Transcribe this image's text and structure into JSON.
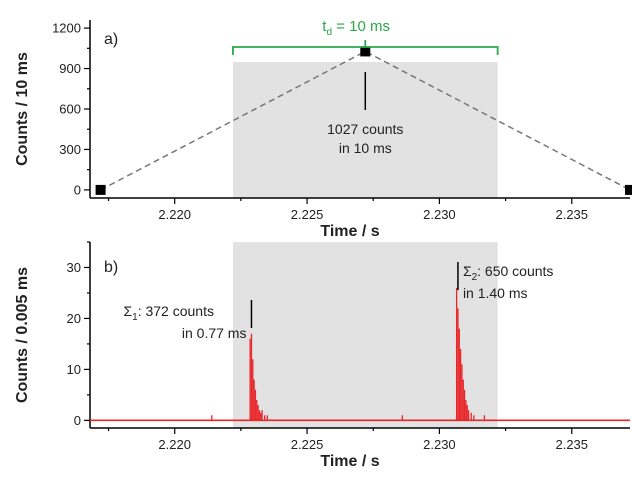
{
  "chart_data": [
    {
      "panel": "a)",
      "type": "line",
      "xlabel": "Time / s",
      "ylabel": "Counts / 10 ms",
      "xlim": [
        2.2168,
        2.2372
      ],
      "ylim": [
        -60,
        1260
      ],
      "xticks": [
        2.22,
        2.225,
        2.23,
        2.235
      ],
      "xtick_labels": [
        "2.220",
        "2.225",
        "2.230",
        "2.235"
      ],
      "yticks": [
        0,
        300,
        600,
        900,
        1200
      ],
      "ytick_labels": [
        "0",
        "300",
        "600",
        "900",
        "1200"
      ],
      "series": [
        {
          "x": [
            2.2172,
            2.2272,
            2.2372
          ],
          "y": [
            0,
            1027,
            0
          ],
          "color": "#777777",
          "style": "dashed",
          "markers": "square"
        }
      ],
      "shaded_region": {
        "x": [
          2.2222,
          2.2322
        ],
        "color": "#e2e2e2"
      },
      "bracket": {
        "x": [
          2.2222,
          2.2322
        ],
        "label_main": "t",
        "label_sub": "d",
        "label_rest": " = 10 ms",
        "color": "#2aa84a"
      },
      "annotation": {
        "lines": [
          "1027 counts",
          "in 10 ms"
        ],
        "x": 2.2272
      }
    },
    {
      "panel": "b)",
      "type": "line",
      "xlabel": "Time / s",
      "ylabel": "Counts / 0.005 ms",
      "xlim": [
        2.2168,
        2.2372
      ],
      "ylim": [
        -1.5,
        35
      ],
      "xticks": [
        2.22,
        2.225,
        2.23,
        2.235
      ],
      "xtick_labels": [
        "2.220",
        "2.225",
        "2.230",
        "2.235"
      ],
      "yticks": [
        0,
        10,
        20,
        30
      ],
      "ytick_labels": [
        "0",
        "10",
        "20",
        "30"
      ],
      "series": [
        {
          "color": "#e8262a",
          "baseline": 0,
          "x": [
            2.2214,
            2.22285,
            2.2229,
            2.22295,
            2.223,
            2.22305,
            2.2231,
            2.22315,
            2.2232,
            2.22325,
            2.2233,
            2.2234,
            2.2235,
            2.2286,
            2.23065,
            2.2307,
            2.23075,
            2.2308,
            2.23085,
            2.2309,
            2.23095,
            2.231,
            2.23105,
            2.2311,
            2.2312,
            2.2313,
            2.2317
          ],
          "y": [
            1,
            16,
            17,
            12,
            8,
            6,
            4,
            3,
            2,
            1.5,
            2,
            1,
            1,
            1,
            26,
            22,
            18,
            14,
            11,
            8,
            6,
            4,
            3,
            2,
            1.5,
            1,
            1
          ]
        }
      ],
      "shaded_region": {
        "x": [
          2.2222,
          2.2322
        ],
        "color": "#e2e2e2"
      },
      "annotations": [
        {
          "sigma": "Σ",
          "sub": "1",
          "line1_rest": ": 372 counts",
          "line2": "in 0.77 ms",
          "x": 2.2229
        },
        {
          "sigma": "Σ",
          "sub": "2",
          "line1_rest": ": 650 counts",
          "line2": "in 1.40 ms",
          "x": 2.2307
        }
      ]
    }
  ]
}
